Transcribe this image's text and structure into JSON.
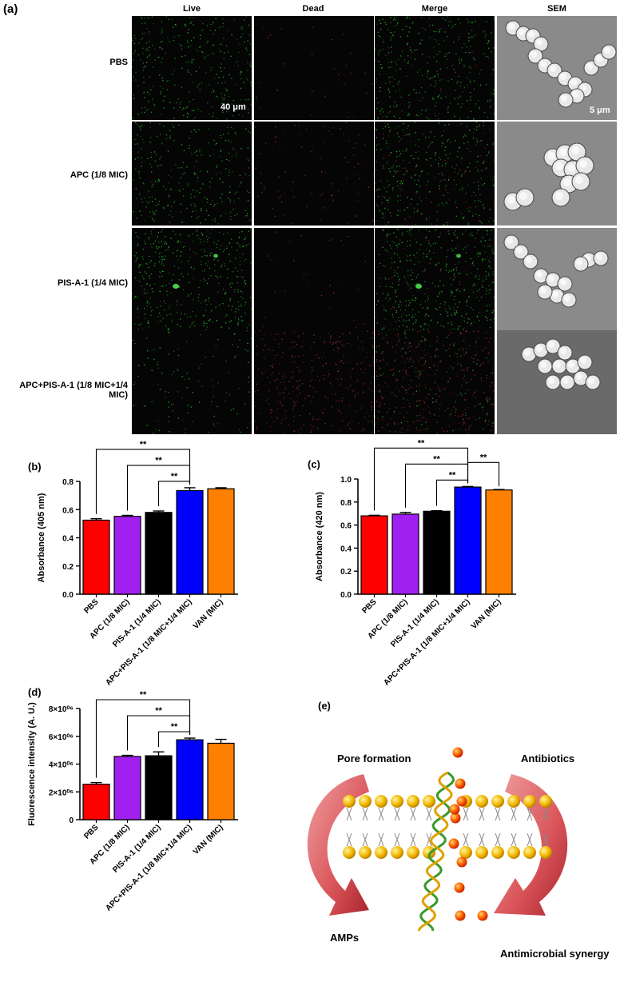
{
  "panels": {
    "a": "(a)",
    "b": "(b)",
    "c": "(c)",
    "d": "(d)",
    "e": "(e)"
  },
  "microscopy": {
    "columns": [
      "Live",
      "Dead",
      "Merge",
      "SEM"
    ],
    "rows": [
      "PBS",
      "APC (1/8 MIC)",
      "PIS-A-1 (1/4 MIC)",
      "APC+PIS-A-1 (1/8 MIC+1/4 MIC)"
    ],
    "scale_fluorescence": "40 μm",
    "scale_sem": "5 μm",
    "live_intensity": [
      0.55,
      0.5,
      0.75,
      0.2
    ],
    "dead_intensity": [
      0.05,
      0.15,
      0.05,
      0.55
    ]
  },
  "colors": {
    "PBS": "#ff0000",
    "APC": "#a020f0",
    "PIS": "#000000",
    "combo": "#0000ff",
    "VAN": "#ff8000",
    "live": "#2bd62b",
    "dead": "#d0304a"
  },
  "chart_data": [
    {
      "id": "b",
      "type": "bar",
      "categories": [
        "PBS",
        "APC (1/8 MIC)",
        "PIS-A-1 (1/4 MIC)",
        "APC+PIS-A-1 (1/8 MIC+1/4 MIC)",
        "VAN (MIC)"
      ],
      "values": [
        0.525,
        0.552,
        0.58,
        0.735,
        0.748
      ],
      "errors": [
        0.01,
        0.007,
        0.01,
        0.02,
        0.007
      ],
      "ylabel": "Absorbance (405 nm)",
      "ylim": [
        0,
        0.8
      ],
      "yticks": [
        "0.0",
        "0.2",
        "0.4",
        "0.6",
        "0.8"
      ],
      "significance": [
        {
          "from": 0,
          "to": 3,
          "label": "**"
        },
        {
          "from": 1,
          "to": 3,
          "label": "**"
        },
        {
          "from": 2,
          "to": 3,
          "label": "**"
        }
      ]
    },
    {
      "id": "c",
      "type": "bar",
      "categories": [
        "PBS",
        "APC (1/8 MIC)",
        "PIS-A-1 (1/4 MIC)",
        "APC+PIS-A-1 (1/8 MIC+1/4 MIC)",
        "VAN (MIC)"
      ],
      "values": [
        0.68,
        0.695,
        0.72,
        0.93,
        0.905
      ],
      "errors": [
        0.005,
        0.015,
        0.005,
        0.005,
        0.004
      ],
      "ylabel": "Absorbance (420 nm)",
      "ylim": [
        0,
        1.0
      ],
      "yticks": [
        "0.0",
        "0.2",
        "0.4",
        "0.6",
        "0.8",
        "1.0"
      ],
      "significance": [
        {
          "from": 0,
          "to": 3,
          "label": "**"
        },
        {
          "from": 1,
          "to": 3,
          "label": "**"
        },
        {
          "from": 2,
          "to": 3,
          "label": "**"
        },
        {
          "from": 3,
          "to": 4,
          "label": "**"
        }
      ]
    },
    {
      "id": "d",
      "type": "bar",
      "categories": [
        "PBS",
        "APC (1/8 MIC)",
        "PIS-A-1 (1/4 MIC)",
        "APC+PIS-A-1 (1/8 MIC+1/4 MIC)",
        "VAN (MIC)"
      ],
      "values": [
        2550000,
        4550000,
        4600000,
        5750000,
        5500000
      ],
      "errors": [
        120000,
        80000,
        280000,
        120000,
        280000
      ],
      "ylabel": "Fluorescence intensity (A. U.)",
      "ylim": [
        0,
        8000000
      ],
      "yticks": [
        "0",
        "2×10⁰⁶",
        "4×10⁰⁶",
        "6×10⁰⁶",
        "8×10⁰⁶"
      ],
      "significance": [
        {
          "from": 0,
          "to": 3,
          "label": "**"
        },
        {
          "from": 1,
          "to": 3,
          "label": "**"
        },
        {
          "from": 2,
          "to": 3,
          "label": "**"
        }
      ]
    }
  ],
  "scheme": {
    "pore": "Pore formation",
    "antibiotics": "Antibiotics",
    "amps": "AMPs",
    "synergy": "Antimicrobial synergy"
  }
}
